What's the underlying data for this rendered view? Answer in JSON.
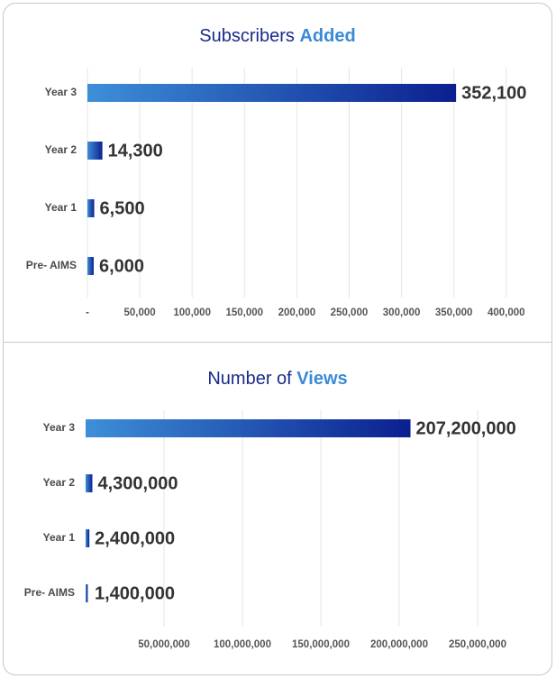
{
  "chart_data": [
    {
      "type": "bar",
      "orientation": "horizontal",
      "title": {
        "text": "Subscribers",
        "highlight": "Added"
      },
      "categories": [
        "Year 3",
        "Year 2",
        "Year 1",
        "Pre- AIMS"
      ],
      "values": [
        352100,
        14300,
        6500,
        6000
      ],
      "value_labels": [
        "352,100",
        "14,300",
        "6,500",
        "6,000"
      ],
      "colors": [
        "#3d8fd8",
        "#0b1f8f"
      ],
      "xlim": [
        0,
        420000
      ],
      "xticks": [
        {
          "value": 0,
          "label": "-"
        },
        {
          "value": 50000,
          "label": "50,000"
        },
        {
          "value": 100000,
          "label": "100,000"
        },
        {
          "value": 150000,
          "label": "150,000"
        },
        {
          "value": 200000,
          "label": "200,000"
        },
        {
          "value": 250000,
          "label": "250,000"
        },
        {
          "value": 300000,
          "label": "300,000"
        },
        {
          "value": 350000,
          "label": "350,000"
        },
        {
          "value": 400000,
          "label": "400,000"
        }
      ],
      "grid": true
    },
    {
      "type": "bar",
      "orientation": "horizontal",
      "title": {
        "text": "Number of",
        "highlight": "Views"
      },
      "categories": [
        "Year 3",
        "Year 2",
        "Year 1",
        "Pre- AIMS"
      ],
      "values": [
        207200000,
        4300000,
        2400000,
        1400000
      ],
      "value_labels": [
        "207,200,000",
        "4,300,000",
        "2,400,000",
        "1,400,000"
      ],
      "colors": [
        "#3d8fd8",
        "#0b1f8f"
      ],
      "xlim": [
        0,
        275000000
      ],
      "xticks": [
        {
          "value": 50000000,
          "label": "50,000,000"
        },
        {
          "value": 100000000,
          "label": "100,000,000"
        },
        {
          "value": 150000000,
          "label": "150,000,000"
        },
        {
          "value": 200000000,
          "label": "200,000,000"
        },
        {
          "value": 250000000,
          "label": "250,000,000"
        }
      ],
      "grid": true
    }
  ]
}
